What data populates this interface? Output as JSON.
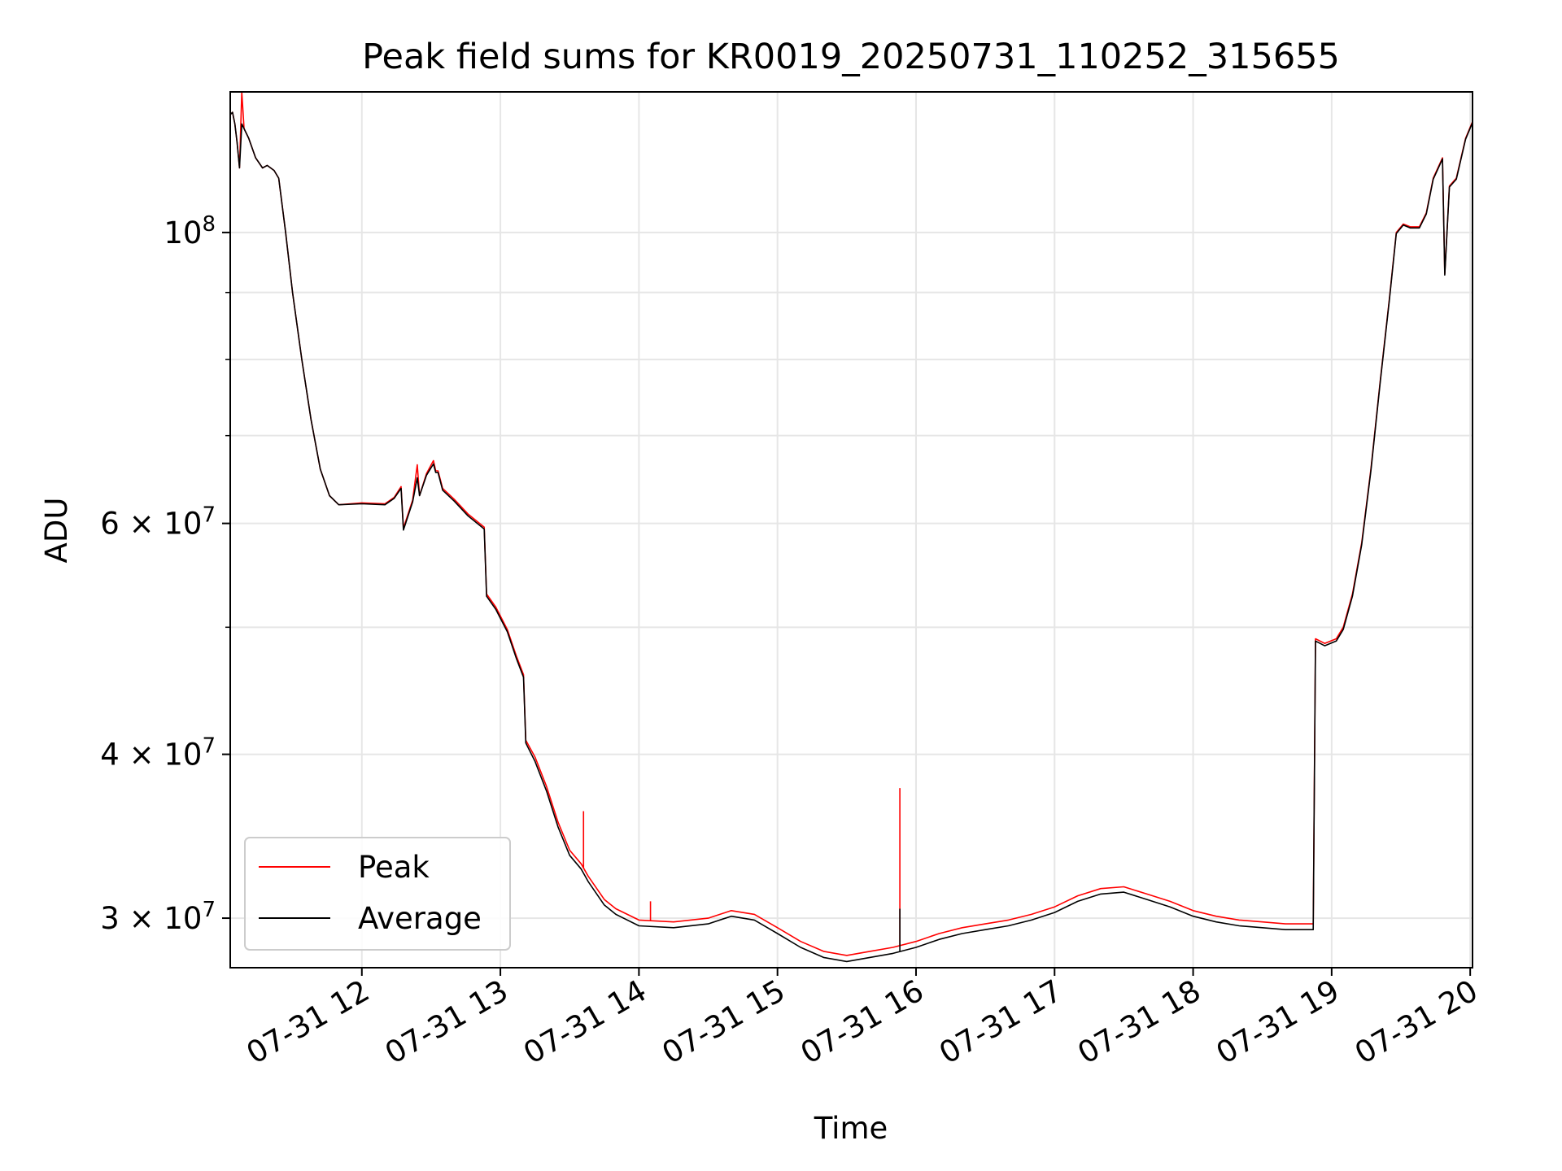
{
  "chart_data": {
    "type": "line",
    "title": "Peak field sums for KR0019_20250731_110252_315655",
    "xlabel": "Time",
    "ylabel": "ADU",
    "y_scale": "log",
    "ylim": [
      27500000,
      128000000
    ],
    "xlim": [
      "2025-07-31 11:03",
      "2025-07-31 20:01"
    ],
    "grid": true,
    "legend_position": "lower-left",
    "x_ticks": [
      {
        "t": "2025-07-31 12:00",
        "label": "07-31 12"
      },
      {
        "t": "2025-07-31 13:00",
        "label": "07-31 13"
      },
      {
        "t": "2025-07-31 14:00",
        "label": "07-31 14"
      },
      {
        "t": "2025-07-31 15:00",
        "label": "07-31 15"
      },
      {
        "t": "2025-07-31 16:00",
        "label": "07-31 16"
      },
      {
        "t": "2025-07-31 17:00",
        "label": "07-31 17"
      },
      {
        "t": "2025-07-31 18:00",
        "label": "07-31 18"
      },
      {
        "t": "2025-07-31 19:00",
        "label": "07-31 19"
      },
      {
        "t": "2025-07-31 20:00",
        "label": "07-31 20"
      }
    ],
    "y_major_ticks": [
      {
        "value": 100000000,
        "mantissa": "",
        "base": "10",
        "exp": "8"
      },
      {
        "value": 60000000,
        "mantissa": "6 × ",
        "base": "10",
        "exp": "7"
      },
      {
        "value": 40000000,
        "mantissa": "4 × ",
        "base": "10",
        "exp": "7"
      },
      {
        "value": 30000000,
        "mantissa": "3 × ",
        "base": "10",
        "exp": "7"
      }
    ],
    "y_minor_ticks": [
      50000000,
      70000000,
      80000000,
      90000000
    ],
    "series": [
      {
        "name": "Peak",
        "color": "#ff0000",
        "points": [
          [
            "2025-07-31 11:03",
            123000000
          ],
          [
            "2025-07-31 11:04",
            123500000
          ],
          [
            "2025-07-31 11:05",
            121000000
          ],
          [
            "2025-07-31 11:06",
            117000000
          ],
          [
            "2025-07-31 11:07",
            112000000
          ],
          [
            "2025-07-31 11:08",
            128000000
          ],
          [
            "2025-07-31 11:09",
            120000000
          ],
          [
            "2025-07-31 11:11",
            118000000
          ],
          [
            "2025-07-31 11:14",
            114000000
          ],
          [
            "2025-07-31 11:17",
            112000000
          ],
          [
            "2025-07-31 11:19",
            112500000
          ],
          [
            "2025-07-31 11:22",
            111500000
          ],
          [
            "2025-07-31 11:24",
            110000000
          ],
          [
            "2025-07-31 11:27",
            100000000
          ],
          [
            "2025-07-31 11:30",
            90000000
          ],
          [
            "2025-07-31 11:34",
            80000000
          ],
          [
            "2025-07-31 11:38",
            72000000
          ],
          [
            "2025-07-31 11:42",
            66000000
          ],
          [
            "2025-07-31 11:46",
            63000000
          ],
          [
            "2025-07-31 11:50",
            62000000
          ],
          [
            "2025-07-31 12:00",
            62200000
          ],
          [
            "2025-07-31 12:10",
            62100000
          ],
          [
            "2025-07-31 12:14",
            62800000
          ],
          [
            "2025-07-31 12:17",
            64000000
          ],
          [
            "2025-07-31 12:18",
            59500000
          ],
          [
            "2025-07-31 12:22",
            62500000
          ],
          [
            "2025-07-31 12:24",
            66500000
          ],
          [
            "2025-07-31 12:25",
            63000000
          ],
          [
            "2025-07-31 12:28",
            65500000
          ],
          [
            "2025-07-31 12:31",
            67000000
          ],
          [
            "2025-07-31 12:32",
            65800000
          ],
          [
            "2025-07-31 12:33",
            65800000
          ],
          [
            "2025-07-31 12:35",
            63800000
          ],
          [
            "2025-07-31 12:40",
            62600000
          ],
          [
            "2025-07-31 12:46",
            61000000
          ],
          [
            "2025-07-31 12:52",
            59800000
          ],
          [
            "2025-07-31 12:53",
            59600000
          ],
          [
            "2025-07-31 12:54",
            53000000
          ],
          [
            "2025-07-31 12:58",
            51800000
          ],
          [
            "2025-07-31 13:03",
            49800000
          ],
          [
            "2025-07-31 13:07",
            47500000
          ],
          [
            "2025-07-31 13:10",
            46000000
          ],
          [
            "2025-07-31 13:11",
            41000000
          ],
          [
            "2025-07-31 13:15",
            39800000
          ],
          [
            "2025-07-31 13:20",
            37800000
          ],
          [
            "2025-07-31 13:25",
            35500000
          ],
          [
            "2025-07-31 13:30",
            33800000
          ],
          [
            "2025-07-31 13:35",
            33000000
          ],
          [
            "2025-07-31 13:38",
            32300000
          ],
          [
            "2025-07-31 13:45",
            31000000
          ],
          [
            "2025-07-31 13:50",
            30500000
          ],
          [
            "2025-07-31 14:00",
            29900000
          ],
          [
            "2025-07-31 14:15",
            29800000
          ],
          [
            "2025-07-31 14:30",
            30000000
          ],
          [
            "2025-07-31 14:40",
            30400000
          ],
          [
            "2025-07-31 14:50",
            30200000
          ],
          [
            "2025-07-31 15:00",
            29500000
          ],
          [
            "2025-07-31 15:10",
            28800000
          ],
          [
            "2025-07-31 15:20",
            28300000
          ],
          [
            "2025-07-31 15:30",
            28100000
          ],
          [
            "2025-07-31 15:40",
            28300000
          ],
          [
            "2025-07-31 15:50",
            28500000
          ],
          [
            "2025-07-31 16:00",
            28800000
          ],
          [
            "2025-07-31 16:10",
            29200000
          ],
          [
            "2025-07-31 16:20",
            29500000
          ],
          [
            "2025-07-31 16:30",
            29700000
          ],
          [
            "2025-07-31 16:40",
            29900000
          ],
          [
            "2025-07-31 16:50",
            30200000
          ],
          [
            "2025-07-31 17:00",
            30600000
          ],
          [
            "2025-07-31 17:10",
            31200000
          ],
          [
            "2025-07-31 17:20",
            31600000
          ],
          [
            "2025-07-31 17:30",
            31700000
          ],
          [
            "2025-07-31 17:40",
            31300000
          ],
          [
            "2025-07-31 17:50",
            30900000
          ],
          [
            "2025-07-31 18:00",
            30400000
          ],
          [
            "2025-07-31 18:10",
            30100000
          ],
          [
            "2025-07-31 18:20",
            29900000
          ],
          [
            "2025-07-31 18:30",
            29800000
          ],
          [
            "2025-07-31 18:40",
            29700000
          ],
          [
            "2025-07-31 18:52",
            29700000
          ],
          [
            "2025-07-31 18:53",
            49000000
          ],
          [
            "2025-07-31 18:57",
            48600000
          ],
          [
            "2025-07-31 19:02",
            49000000
          ],
          [
            "2025-07-31 19:05",
            50000000
          ],
          [
            "2025-07-31 19:09",
            53000000
          ],
          [
            "2025-07-31 19:13",
            58000000
          ],
          [
            "2025-07-31 19:17",
            66000000
          ],
          [
            "2025-07-31 19:21",
            77000000
          ],
          [
            "2025-07-31 19:25",
            89000000
          ],
          [
            "2025-07-31 19:28",
            100000000
          ],
          [
            "2025-07-31 19:31",
            101500000
          ],
          [
            "2025-07-31 19:34",
            101000000
          ],
          [
            "2025-07-31 19:38",
            101000000
          ],
          [
            "2025-07-31 19:41",
            103500000
          ],
          [
            "2025-07-31 19:44",
            110000000
          ],
          [
            "2025-07-31 19:48",
            114000000
          ],
          [
            "2025-07-31 19:49",
            93000000
          ],
          [
            "2025-07-31 19:51",
            108500000
          ],
          [
            "2025-07-31 19:54",
            110000000
          ],
          [
            "2025-07-31 19:58",
            118000000
          ],
          [
            "2025-07-31 20:01",
            121500000
          ]
        ],
        "spikes": [
          {
            "t": "2025-07-31 13:36",
            "value": 36200000
          },
          {
            "t": "2025-07-31 14:05",
            "value": 30900000
          },
          {
            "t": "2025-07-31 15:53",
            "value": 37700000
          }
        ]
      },
      {
        "name": "Average",
        "color": "#000000",
        "points": [
          [
            "2025-07-31 11:03",
            123000000
          ],
          [
            "2025-07-31 11:04",
            123500000
          ],
          [
            "2025-07-31 11:05",
            121000000
          ],
          [
            "2025-07-31 11:06",
            117000000
          ],
          [
            "2025-07-31 11:07",
            112000000
          ],
          [
            "2025-07-31 11:08",
            121000000
          ],
          [
            "2025-07-31 11:09",
            120000000
          ],
          [
            "2025-07-31 11:11",
            118000000
          ],
          [
            "2025-07-31 11:14",
            114000000
          ],
          [
            "2025-07-31 11:17",
            112000000
          ],
          [
            "2025-07-31 11:19",
            112500000
          ],
          [
            "2025-07-31 11:22",
            111500000
          ],
          [
            "2025-07-31 11:24",
            110000000
          ],
          [
            "2025-07-31 11:27",
            100000000
          ],
          [
            "2025-07-31 11:30",
            90000000
          ],
          [
            "2025-07-31 11:34",
            80000000
          ],
          [
            "2025-07-31 11:38",
            72000000
          ],
          [
            "2025-07-31 11:42",
            66000000
          ],
          [
            "2025-07-31 11:46",
            63000000
          ],
          [
            "2025-07-31 11:50",
            62000000
          ],
          [
            "2025-07-31 12:00",
            62100000
          ],
          [
            "2025-07-31 12:10",
            62000000
          ],
          [
            "2025-07-31 12:14",
            62700000
          ],
          [
            "2025-07-31 12:17",
            63800000
          ],
          [
            "2025-07-31 12:18",
            59300000
          ],
          [
            "2025-07-31 12:22",
            62300000
          ],
          [
            "2025-07-31 12:24",
            65000000
          ],
          [
            "2025-07-31 12:25",
            63000000
          ],
          [
            "2025-07-31 12:28",
            65300000
          ],
          [
            "2025-07-31 12:31",
            66600000
          ],
          [
            "2025-07-31 12:32",
            65600000
          ],
          [
            "2025-07-31 12:33",
            65600000
          ],
          [
            "2025-07-31 12:35",
            63600000
          ],
          [
            "2025-07-31 12:40",
            62400000
          ],
          [
            "2025-07-31 12:46",
            60800000
          ],
          [
            "2025-07-31 12:52",
            59600000
          ],
          [
            "2025-07-31 12:53",
            59400000
          ],
          [
            "2025-07-31 12:54",
            52800000
          ],
          [
            "2025-07-31 12:58",
            51600000
          ],
          [
            "2025-07-31 13:03",
            49600000
          ],
          [
            "2025-07-31 13:07",
            47300000
          ],
          [
            "2025-07-31 13:10",
            45800000
          ],
          [
            "2025-07-31 13:11",
            40800000
          ],
          [
            "2025-07-31 13:15",
            39500000
          ],
          [
            "2025-07-31 13:20",
            37500000
          ],
          [
            "2025-07-31 13:25",
            35200000
          ],
          [
            "2025-07-31 13:30",
            33500000
          ],
          [
            "2025-07-31 13:35",
            32700000
          ],
          [
            "2025-07-31 13:38",
            32000000
          ],
          [
            "2025-07-31 13:45",
            30700000
          ],
          [
            "2025-07-31 13:50",
            30200000
          ],
          [
            "2025-07-31 14:00",
            29600000
          ],
          [
            "2025-07-31 14:15",
            29500000
          ],
          [
            "2025-07-31 14:30",
            29700000
          ],
          [
            "2025-07-31 14:40",
            30100000
          ],
          [
            "2025-07-31 14:50",
            29900000
          ],
          [
            "2025-07-31 15:00",
            29200000
          ],
          [
            "2025-07-31 15:10",
            28500000
          ],
          [
            "2025-07-31 15:20",
            28000000
          ],
          [
            "2025-07-31 15:30",
            27800000
          ],
          [
            "2025-07-31 15:40",
            28000000
          ],
          [
            "2025-07-31 15:50",
            28200000
          ],
          [
            "2025-07-31 16:00",
            28500000
          ],
          [
            "2025-07-31 16:10",
            28900000
          ],
          [
            "2025-07-31 16:20",
            29200000
          ],
          [
            "2025-07-31 16:30",
            29400000
          ],
          [
            "2025-07-31 16:40",
            29600000
          ],
          [
            "2025-07-31 16:50",
            29900000
          ],
          [
            "2025-07-31 17:00",
            30300000
          ],
          [
            "2025-07-31 17:10",
            30900000
          ],
          [
            "2025-07-31 17:20",
            31300000
          ],
          [
            "2025-07-31 17:30",
            31400000
          ],
          [
            "2025-07-31 17:40",
            31000000
          ],
          [
            "2025-07-31 17:50",
            30600000
          ],
          [
            "2025-07-31 18:00",
            30100000
          ],
          [
            "2025-07-31 18:10",
            29800000
          ],
          [
            "2025-07-31 18:20",
            29600000
          ],
          [
            "2025-07-31 18:30",
            29500000
          ],
          [
            "2025-07-31 18:40",
            29400000
          ],
          [
            "2025-07-31 18:52",
            29400000
          ],
          [
            "2025-07-31 18:53",
            48800000
          ],
          [
            "2025-07-31 18:57",
            48400000
          ],
          [
            "2025-07-31 19:02",
            48800000
          ],
          [
            "2025-07-31 19:05",
            49800000
          ],
          [
            "2025-07-31 19:09",
            52800000
          ],
          [
            "2025-07-31 19:13",
            57800000
          ],
          [
            "2025-07-31 19:17",
            65800000
          ],
          [
            "2025-07-31 19:21",
            76800000
          ],
          [
            "2025-07-31 19:25",
            88800000
          ],
          [
            "2025-07-31 19:28",
            99800000
          ],
          [
            "2025-07-31 19:31",
            101300000
          ],
          [
            "2025-07-31 19:34",
            100800000
          ],
          [
            "2025-07-31 19:38",
            100800000
          ],
          [
            "2025-07-31 19:41",
            103300000
          ],
          [
            "2025-07-31 19:44",
            109800000
          ],
          [
            "2025-07-31 19:48",
            113800000
          ],
          [
            "2025-07-31 19:49",
            92800000
          ],
          [
            "2025-07-31 19:51",
            108300000
          ],
          [
            "2025-07-31 19:54",
            109800000
          ],
          [
            "2025-07-31 19:58",
            117800000
          ],
          [
            "2025-07-31 20:01",
            121300000
          ]
        ],
        "spikes": [
          {
            "t": "2025-07-31 15:53",
            "value": 30500000
          }
        ]
      }
    ]
  }
}
